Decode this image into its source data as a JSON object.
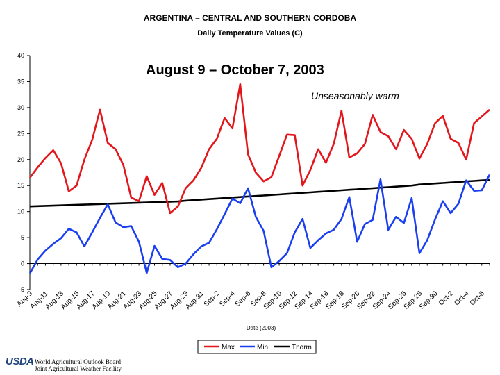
{
  "page": {
    "title": "ARGENTINA – CENTRAL AND SOUTHERN CORDOBA",
    "subtitle": "Daily Temperature Values (C)",
    "period_label": "August 9 – October 7, 2003",
    "annotation": "Unseasonably warm",
    "footer": {
      "logo_text": "USDA",
      "agency_line_1": "World Agricultural Outlook Board",
      "agency_line_2": "Joint Agricultural Weather Facility"
    }
  },
  "chart_data": {
    "type": "line",
    "title": "Daily Temperature Values (C)",
    "xlabel": "Date (2003)",
    "ylabel": "",
    "ylim": [
      -5,
      40
    ],
    "yticks": [
      -5,
      0,
      5,
      10,
      15,
      20,
      25,
      30,
      35,
      40
    ],
    "ytick_labels": [
      "-5",
      "0",
      "5",
      "10",
      "15",
      "20",
      "25",
      "30",
      "35",
      "40"
    ],
    "x_tick_labels": [
      "Aug-9",
      "Aug-11",
      "Aug-13",
      "Aug-15",
      "Aug-17",
      "Aug-19",
      "Aug-21",
      "Aug-23",
      "Aug-25",
      "Aug-27",
      "Aug-29",
      "Aug-31",
      "Sep-2",
      "Sep-4",
      "Sep-6",
      "Sep-8",
      "Sep-10",
      "Sep-12",
      "Sep-14",
      "Sep-16",
      "Sep-18",
      "Sep-20",
      "Sep-22",
      "Sep-24",
      "Sep-26",
      "Sep-28",
      "Sep-30",
      "Oct-2",
      "Oct-4",
      "Oct-6"
    ],
    "x_start": "Aug-9",
    "x_end": "Oct-7",
    "grid": false,
    "legend_position": "bottom-center",
    "series": [
      {
        "name": "Max",
        "color": "#e3161b",
        "values": [
          16.5,
          18.5,
          20.3,
          21.8,
          19.3,
          13.9,
          15.0,
          20.0,
          23.8,
          29.6,
          23.2,
          22.0,
          19.0,
          12.7,
          12.0,
          16.8,
          13.2,
          15.5,
          9.7,
          11.0,
          14.5,
          16.0,
          18.4,
          22.0,
          24.0,
          28.0,
          26.0,
          34.5,
          21.0,
          17.5,
          15.8,
          16.6,
          20.7,
          24.8,
          24.7,
          15.0,
          18.0,
          22.0,
          19.4,
          23.0,
          29.4,
          20.4,
          21.2,
          23.0,
          28.6,
          25.3,
          24.5,
          22.0,
          25.7,
          24.0,
          20.2,
          23.0,
          27.0,
          28.4,
          24.0,
          23.2,
          20.0,
          27.0,
          28.3,
          29.6
        ]
      },
      {
        "name": "Min",
        "color": "#1a3ff0",
        "values": [
          -1.9,
          0.8,
          2.5,
          3.8,
          4.9,
          6.7,
          6.0,
          3.3,
          6.0,
          8.8,
          11.4,
          7.9,
          7.0,
          7.2,
          4.2,
          -1.8,
          3.4,
          0.9,
          0.7,
          -0.7,
          0.0,
          1.8,
          3.3,
          4.0,
          6.6,
          9.5,
          12.5,
          11.6,
          14.5,
          9.0,
          6.3,
          -0.7,
          0.5,
          2.0,
          6.0,
          8.6,
          3.0,
          4.5,
          5.8,
          6.5,
          8.6,
          12.8,
          4.2,
          7.6,
          8.4,
          16.2,
          6.5,
          9.0,
          7.8,
          12.6,
          2.0,
          4.5,
          8.5,
          12.0,
          9.7,
          11.5,
          16.0,
          14.0,
          14.1,
          17.1
        ]
      },
      {
        "name": "Tnorm",
        "color": "#000000",
        "values": [
          11.0,
          11.05,
          11.1,
          11.15,
          11.2,
          11.25,
          11.3,
          11.35,
          11.4,
          11.45,
          11.5,
          11.55,
          11.6,
          11.65,
          11.7,
          11.75,
          11.8,
          11.85,
          11.9,
          11.95,
          12.1,
          12.2,
          12.3,
          12.4,
          12.5,
          12.6,
          12.7,
          12.8,
          12.9,
          13.0,
          13.1,
          13.2,
          13.3,
          13.4,
          13.5,
          13.6,
          13.7,
          13.8,
          13.9,
          14.0,
          14.1,
          14.2,
          14.3,
          14.4,
          14.5,
          14.6,
          14.7,
          14.8,
          14.9,
          15.0,
          15.2,
          15.3,
          15.4,
          15.5,
          15.6,
          15.7,
          15.8,
          15.9,
          16.0,
          16.1
        ]
      }
    ]
  }
}
